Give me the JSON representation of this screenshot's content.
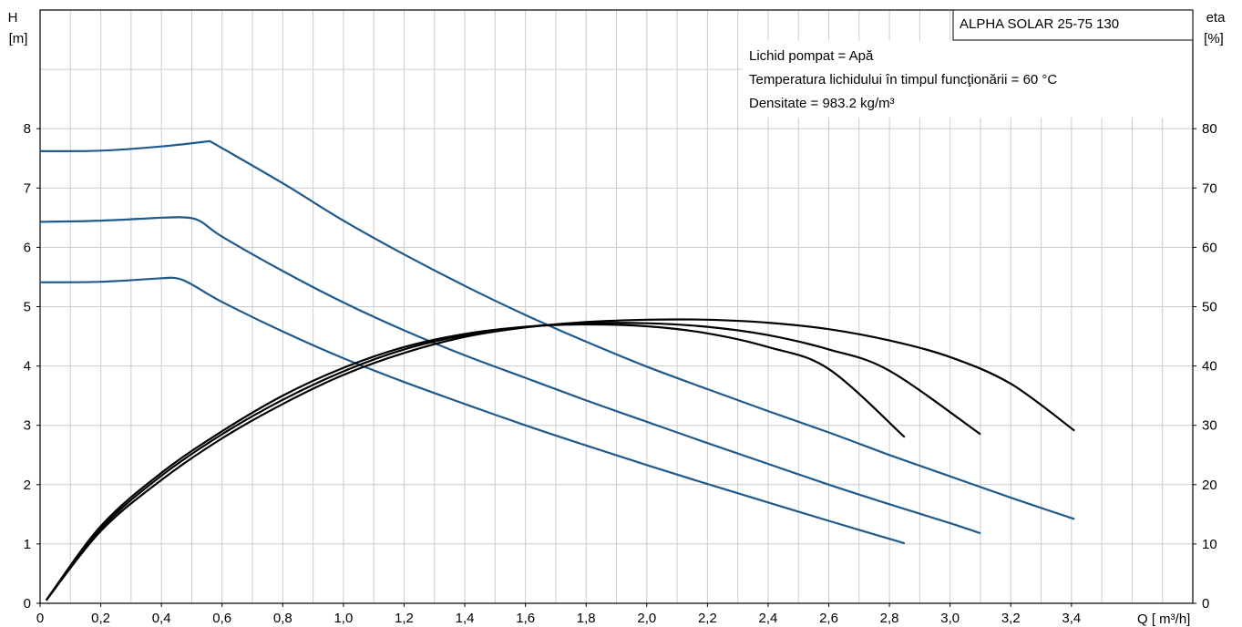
{
  "chart_data": {
    "type": "line",
    "title": "ALPHA SOLAR 25-75  130",
    "y_left_label": "H",
    "y_left_unit": "[m]",
    "y_right_label": "eta",
    "y_right_unit": "[%]",
    "x_label": "Q [ m³/h]",
    "x_ticks": [
      "0",
      "0,2",
      "0,4",
      "0,6",
      "0,8",
      "1,0",
      "1,2",
      "1,4",
      "1,6",
      "1,8",
      "2,0",
      "2,2",
      "2,4",
      "2,6",
      "2,8",
      "3,0",
      "3,2",
      "3,4"
    ],
    "y_left_ticks": [
      "0",
      "1",
      "2",
      "3",
      "4",
      "5",
      "6",
      "7",
      "8"
    ],
    "y_right_ticks": [
      "0",
      "10",
      "20",
      "30",
      "40",
      "50",
      "60",
      "70",
      "80"
    ],
    "xlim": [
      0,
      3.8
    ],
    "ylim_left": [
      0,
      10
    ],
    "ylim_right": [
      0,
      100
    ],
    "grid": true,
    "info_lines": [
      "Lichid pompat = Apă",
      "Temperatura lichidului în timpul funcţionării = 60  °C",
      "Densitate = 983.2  kg/m³"
    ],
    "colors": {
      "head": "#1f5a8c",
      "efficiency": "#000000",
      "grid": "#cccccc"
    },
    "head_curves": [
      {
        "points": [
          [
            0,
            7.62
          ],
          [
            0.2,
            7.63
          ],
          [
            0.4,
            7.7
          ],
          [
            0.56,
            7.79
          ],
          [
            0.8,
            7.08
          ],
          [
            1.0,
            6.45
          ],
          [
            1.2,
            5.88
          ],
          [
            1.4,
            5.35
          ],
          [
            1.6,
            4.86
          ],
          [
            1.8,
            4.41
          ],
          [
            2.0,
            3.99
          ],
          [
            2.2,
            3.61
          ],
          [
            2.4,
            3.24
          ],
          [
            2.6,
            2.88
          ],
          [
            2.8,
            2.5
          ],
          [
            3.0,
            2.14
          ],
          [
            3.2,
            1.78
          ],
          [
            3.41,
            1.42
          ]
        ]
      },
      {
        "points": [
          [
            0,
            6.43
          ],
          [
            0.2,
            6.45
          ],
          [
            0.4,
            6.5
          ],
          [
            0.51,
            6.48
          ],
          [
            0.6,
            6.18
          ],
          [
            0.8,
            5.6
          ],
          [
            1.0,
            5.07
          ],
          [
            1.2,
            4.6
          ],
          [
            1.4,
            4.18
          ],
          [
            1.6,
            3.8
          ],
          [
            1.8,
            3.42
          ],
          [
            2.0,
            3.06
          ],
          [
            2.2,
            2.7
          ],
          [
            2.4,
            2.35
          ],
          [
            2.6,
            2.0
          ],
          [
            2.8,
            1.67
          ],
          [
            3.0,
            1.35
          ],
          [
            3.1,
            1.18
          ]
        ]
      },
      {
        "points": [
          [
            0,
            5.41
          ],
          [
            0.2,
            5.42
          ],
          [
            0.4,
            5.48
          ],
          [
            0.47,
            5.45
          ],
          [
            0.6,
            5.08
          ],
          [
            0.8,
            4.58
          ],
          [
            1.0,
            4.13
          ],
          [
            1.2,
            3.73
          ],
          [
            1.4,
            3.36
          ],
          [
            1.6,
            3.0
          ],
          [
            1.8,
            2.66
          ],
          [
            2.0,
            2.33
          ],
          [
            2.2,
            2.01
          ],
          [
            2.4,
            1.7
          ],
          [
            2.6,
            1.39
          ],
          [
            2.85,
            1.01
          ]
        ]
      }
    ],
    "efficiency_curves": [
      {
        "points": [
          [
            0.02,
            0.5
          ],
          [
            0.2,
            13
          ],
          [
            0.4,
            22
          ],
          [
            0.6,
            29
          ],
          [
            0.8,
            35
          ],
          [
            1.0,
            39.7
          ],
          [
            1.2,
            43.2
          ],
          [
            1.4,
            45.4
          ],
          [
            1.6,
            46.6
          ],
          [
            1.8,
            47.0
          ],
          [
            2.0,
            46.7
          ],
          [
            2.2,
            45.5
          ],
          [
            2.4,
            43.2
          ],
          [
            2.6,
            39.5
          ],
          [
            2.85,
            28.0
          ]
        ]
      },
      {
        "points": [
          [
            0.02,
            0.5
          ],
          [
            0.2,
            12.6
          ],
          [
            0.4,
            21.5
          ],
          [
            0.6,
            28.5
          ],
          [
            0.8,
            34.3
          ],
          [
            1.0,
            39.1
          ],
          [
            1.2,
            42.8
          ],
          [
            1.4,
            45.2
          ],
          [
            1.6,
            46.6
          ],
          [
            1.8,
            47.2
          ],
          [
            2.0,
            47.2
          ],
          [
            2.2,
            46.6
          ],
          [
            2.4,
            45.2
          ],
          [
            2.6,
            42.8
          ],
          [
            2.8,
            39.2
          ],
          [
            3.1,
            28.5
          ]
        ]
      },
      {
        "points": [
          [
            0.02,
            0.5
          ],
          [
            0.2,
            12.2
          ],
          [
            0.4,
            20.8
          ],
          [
            0.6,
            27.8
          ],
          [
            0.8,
            33.6
          ],
          [
            1.0,
            38.5
          ],
          [
            1.2,
            42.2
          ],
          [
            1.4,
            44.9
          ],
          [
            1.6,
            46.5
          ],
          [
            1.8,
            47.4
          ],
          [
            2.0,
            47.8
          ],
          [
            2.2,
            47.8
          ],
          [
            2.4,
            47.3
          ],
          [
            2.6,
            46.2
          ],
          [
            2.8,
            44.3
          ],
          [
            3.0,
            41.5
          ],
          [
            3.2,
            37.0
          ],
          [
            3.41,
            29.1
          ]
        ]
      }
    ]
  }
}
